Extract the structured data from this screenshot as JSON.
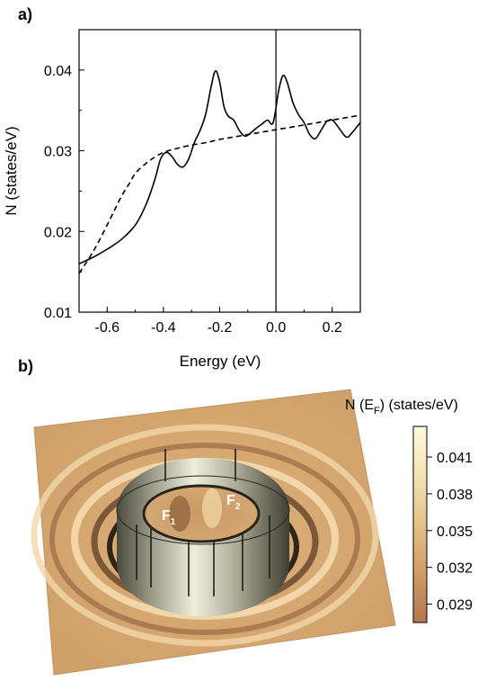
{
  "panel_a": {
    "label": "a)"
  },
  "panel_b": {
    "label": "b)"
  },
  "chart_data": [
    {
      "type": "line",
      "xlabel": "Energy (eV)",
      "ylabel": "N (states/eV)",
      "xlim": [
        -0.7,
        0.3
      ],
      "ylim": [
        0.01,
        0.045
      ],
      "x_ticks": [
        -0.6,
        -0.4,
        -0.2,
        0.0,
        0.2
      ],
      "x_tick_labels": [
        "-0.6",
        "-0.4",
        "-0.2",
        "0.0",
        "0.2"
      ],
      "y_ticks": [
        0.01,
        0.02,
        0.03,
        0.04
      ],
      "y_tick_labels": [
        "0.01",
        "0.02",
        "0.03",
        "0.04"
      ],
      "vertical_line_x": 0.0,
      "grid": false,
      "legend": "none",
      "series": [
        {
          "style": "solid",
          "color": "#000000",
          "x": [
            -0.7,
            -0.65,
            -0.6,
            -0.55,
            -0.5,
            -0.46,
            -0.43,
            -0.41,
            -0.39,
            -0.37,
            -0.35,
            -0.33,
            -0.31,
            -0.29,
            -0.27,
            -0.25,
            -0.23,
            -0.215,
            -0.2,
            -0.185,
            -0.17,
            -0.15,
            -0.13,
            -0.11,
            -0.09,
            -0.07,
            -0.05,
            -0.03,
            -0.01,
            0.01,
            0.025,
            0.04,
            0.06,
            0.08,
            0.1,
            0.12,
            0.14,
            0.16,
            0.18,
            0.2,
            0.22,
            0.25,
            0.27,
            0.3
          ],
          "y": [
            0.016,
            0.0168,
            0.0178,
            0.019,
            0.0208,
            0.0235,
            0.0265,
            0.029,
            0.0298,
            0.0293,
            0.0283,
            0.028,
            0.029,
            0.031,
            0.0325,
            0.0345,
            0.038,
            0.0399,
            0.0385,
            0.0355,
            0.0343,
            0.0338,
            0.0325,
            0.0318,
            0.0322,
            0.0328,
            0.0333,
            0.0338,
            0.0335,
            0.0375,
            0.0393,
            0.0385,
            0.036,
            0.0345,
            0.0335,
            0.032,
            0.0315,
            0.0325,
            0.0336,
            0.0338,
            0.033,
            0.0317,
            0.0322,
            0.0335
          ]
        },
        {
          "style": "dashed",
          "color": "#000000",
          "x": [
            -0.7,
            -0.65,
            -0.6,
            -0.55,
            -0.52,
            -0.5,
            -0.47,
            -0.44,
            -0.4,
            -0.35,
            -0.3,
            -0.25,
            -0.2,
            -0.15,
            -0.1,
            -0.05,
            0.0,
            0.05,
            0.1,
            0.15,
            0.2,
            0.25,
            0.3
          ],
          "y": [
            0.0148,
            0.0175,
            0.0208,
            0.0243,
            0.026,
            0.0272,
            0.0282,
            0.029,
            0.0298,
            0.0303,
            0.0307,
            0.031,
            0.0314,
            0.0317,
            0.032,
            0.0323,
            0.0326,
            0.0329,
            0.0332,
            0.0335,
            0.0338,
            0.0341,
            0.0344
          ]
        }
      ]
    },
    {
      "type": "heatmap",
      "colorbar_label_main": "N (E",
      "colorbar_label_sub": "F",
      "colorbar_label_end": ") (states/eV)",
      "colorbar_ticks": [
        0.041,
        0.038,
        0.035,
        0.032,
        0.029
      ],
      "colorbar_tick_labels": [
        "0.041",
        "0.038",
        "0.035",
        "0.032",
        "0.029"
      ],
      "colorbar_range": [
        0.0275,
        0.0435
      ],
      "colormap": [
        "#b5754e",
        "#d19a68",
        "#e6c189",
        "#f4e3b2",
        "#fdf9dd"
      ],
      "annotations": [
        {
          "main": "F",
          "sub": "1"
        },
        {
          "main": "F",
          "sub": "2"
        }
      ]
    }
  ]
}
